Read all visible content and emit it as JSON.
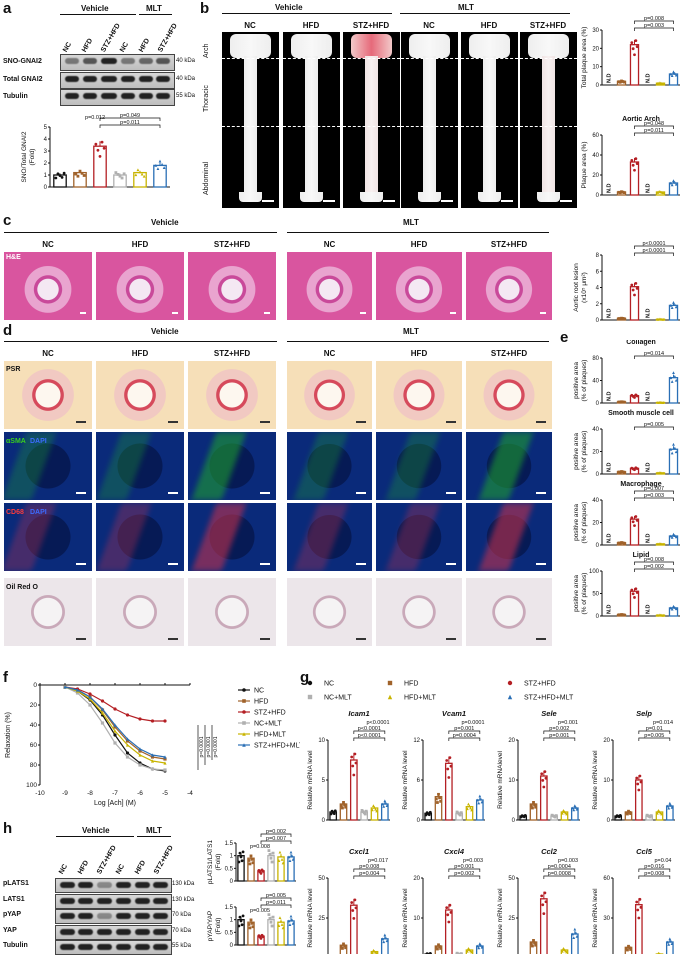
{
  "panels": {
    "a": "a",
    "b": "b",
    "c": "c",
    "d": "d",
    "e": "e",
    "f": "f",
    "g": "g",
    "h": "h"
  },
  "groups": {
    "vehicle": "Vehicle",
    "mlt": "MLT"
  },
  "conds": [
    "NC",
    "HFD",
    "STZ+HFD",
    "NC",
    "HFD",
    "STZ+HFD"
  ],
  "panel_a": {
    "blot_labels": [
      "SNO-GNAI2",
      "Total GNAI2",
      "Tubulin"
    ],
    "kda": [
      "40 kDa",
      "40 kDa",
      "55 kDa"
    ],
    "ylabel": "SNO/Total GNAI2\n(Fold)",
    "pvals": [
      "p=0.011",
      "p=0.049",
      "p=0.012"
    ]
  },
  "panel_b": {
    "regions": [
      "Arch",
      "Thoracic",
      "Abdominal"
    ],
    "chart1": {
      "ylabel": "Total plaque area (%)",
      "pvals": [
        "p=0.003",
        "p=0.008"
      ],
      "nd": "N.D"
    },
    "chart2": {
      "title": "Aortic  Arch",
      "ylabel": "Plaque area (%)",
      "pvals": [
        "p=0.011",
        "p=0.048"
      ],
      "nd": "N.D"
    }
  },
  "panel_c": {
    "stain": "H&E",
    "ylabel": "Aortic root lesion\n(x10⁵ μm²)",
    "pvals": [
      "p<0.0001",
      "p<0.0001"
    ],
    "nd": "N.D"
  },
  "panel_d": {
    "stains": [
      "PSR",
      "αSMA",
      "DAPI",
      "CD68",
      "DAPI",
      "Oil Red O"
    ]
  },
  "panel_e": {
    "titles": [
      "Collagen",
      "Smooth muscle cell",
      "Macrophage",
      "Lipid"
    ],
    "ylabel": "positive area\n(% of plaques)",
    "pvals": [
      [
        "p=0.014"
      ],
      [
        "p=0.005"
      ],
      [
        "p=0.003",
        "p=0.007"
      ],
      [
        "p=0.002",
        "p=0.008"
      ]
    ],
    "nd": "N.D"
  },
  "panel_f": {
    "ylabel": "Relaxation (%)",
    "xlabel": "Log [Ach] (M)",
    "xticks": [
      "-10",
      "-9",
      "-8",
      "-7",
      "-6",
      "-5",
      "-4"
    ],
    "yticks": [
      "0",
      "20",
      "40",
      "60",
      "80",
      "100"
    ],
    "legend": [
      "NC",
      "HFD",
      "STZ+HFD",
      "NC+MLT",
      "HFD+MLT",
      "STZ+HFD+MLT"
    ],
    "pvals": [
      "p=0.0001",
      "p=0.0001",
      "p=0.0001"
    ]
  },
  "panel_g": {
    "legend": [
      "NC",
      "HFD",
      "STZ+HFD",
      "NC+MLT",
      "HFD+MLT",
      "STZ+HFD+MLT"
    ],
    "genes": [
      "Icam1",
      "Vcam1",
      "Sele",
      "Selp",
      "Cxcl1",
      "Cxcl4",
      "Ccl2",
      "Ccl5"
    ],
    "ylabel": "Relative mRNA level",
    "ylabel_sele": "Relative mRNAlevel",
    "pvals": [
      [
        "p<0.0001",
        "p<0.0001",
        "p<0.0001"
      ],
      [
        "p=0.0004",
        "p=0.001",
        "p=0.0001"
      ],
      [
        "p=0.001",
        "p=0.002",
        "p=0.001"
      ],
      [
        "p=0.005",
        "p=0.01",
        "p=0.014"
      ],
      [
        "p=0.004",
        "p=0.008",
        "p=0.017"
      ],
      [
        "p=0.002",
        "p=0.001",
        "p=0.003"
      ],
      [
        "p=0.0008",
        "p=0.0004",
        "p=0.003"
      ],
      [
        "p=0.008",
        "p=0.016",
        "p=0.04"
      ]
    ]
  },
  "panel_h": {
    "blot_labels": [
      "pLATS1",
      "LATS1",
      "pYAP",
      "YAP",
      "Tubulin"
    ],
    "kda": [
      "130 kDa",
      "130 kDa",
      "70 kDa",
      "70 kDa",
      "55 kDa"
    ],
    "ylabel1": "pLATS1/LATS1\n(Fold)",
    "ylabel2": "pYAP/YAP\n(Fold)",
    "pvals1": [
      "p=0.007",
      "p=0.002",
      "p=0.008"
    ],
    "pvals2": [
      "p=0.011",
      "p=0.005",
      "p=0.005"
    ]
  },
  "colors": {
    "nc": "#111111",
    "hfd": "#a0622a",
    "stz": "#b41f24",
    "ncm": "#b0b0b0",
    "hfdm": "#c8b400",
    "stzm": "#2a6fb5"
  },
  "chart_data": [
    {
      "type": "bar",
      "title": "",
      "categories": [
        "NC",
        "HFD",
        "STZ+HFD",
        "NC+MLT",
        "HFD+MLT",
        "STZ+HFD+MLT"
      ],
      "values": [
        1.0,
        1.2,
        3.4,
        1.0,
        1.2,
        1.8
      ],
      "ylabel": "SNO/Total GNAI2 (Fold)",
      "ylim": [
        0,
        5
      ]
    },
    {
      "type": "bar",
      "title": "",
      "categories": [
        "NC",
        "HFD",
        "STZ+HFD",
        "NC+MLT",
        "HFD+MLT",
        "STZ+HFD+MLT"
      ],
      "values": [
        0,
        2,
        22,
        0,
        1,
        6
      ],
      "ylabel": "Total plaque area (%)",
      "ylim": [
        0,
        30
      ]
    },
    {
      "type": "bar",
      "title": "Aortic  Arch",
      "categories": [
        "NC",
        "HFD",
        "STZ+HFD",
        "NC+MLT",
        "HFD+MLT",
        "STZ+HFD+MLT"
      ],
      "values": [
        0,
        3,
        33,
        0,
        3,
        12
      ],
      "ylabel": "Plaque area (%)",
      "ylim": [
        0,
        60
      ]
    },
    {
      "type": "bar",
      "title": "",
      "categories": [
        "NC",
        "HFD",
        "STZ+HFD",
        "NC+MLT",
        "HFD+MLT",
        "STZ+HFD+MLT"
      ],
      "values": [
        0,
        0.2,
        4.1,
        0,
        0.1,
        1.8
      ],
      "ylabel": "Aortic root lesion (x10^5 μm^2)",
      "ylim": [
        0,
        8
      ]
    },
    {
      "type": "bar",
      "title": "Collagen",
      "categories": [
        "NC",
        "HFD",
        "STZ+HFD",
        "NC+MLT",
        "HFD+MLT",
        "STZ+HFD+MLT"
      ],
      "values": [
        0,
        2,
        13,
        0,
        1,
        45
      ],
      "ylim": [
        0,
        80
      ]
    },
    {
      "type": "bar",
      "title": "Smooth muscle cell",
      "categories": [
        "NC",
        "HFD",
        "STZ+HFD",
        "NC+MLT",
        "HFD+MLT",
        "STZ+HFD+MLT"
      ],
      "values": [
        0,
        2,
        5,
        0,
        1,
        22
      ],
      "ylim": [
        0,
        40
      ]
    },
    {
      "type": "bar",
      "title": "Macrophage",
      "categories": [
        "NC",
        "HFD",
        "STZ+HFD",
        "NC+MLT",
        "HFD+MLT",
        "STZ+HFD+MLT"
      ],
      "values": [
        0,
        2,
        23,
        0,
        1,
        8
      ],
      "ylim": [
        0,
        40
      ]
    },
    {
      "type": "bar",
      "title": "Lipid",
      "categories": [
        "NC",
        "HFD",
        "STZ+HFD",
        "NC+MLT",
        "HFD+MLT",
        "STZ+HFD+MLT"
      ],
      "values": [
        0,
        3,
        55,
        0,
        2,
        18
      ],
      "ylim": [
        0,
        100
      ]
    },
    {
      "type": "line",
      "title": "",
      "x": [
        -9,
        -8.5,
        -8,
        -7.5,
        -7,
        -6.5,
        -6,
        -5.5,
        -5
      ],
      "series": [
        {
          "name": "NC",
          "values": [
            2,
            6,
            15,
            30,
            50,
            68,
            78,
            84,
            86
          ]
        },
        {
          "name": "HFD",
          "values": [
            2,
            5,
            12,
            25,
            42,
            56,
            66,
            72,
            74
          ]
        },
        {
          "name": "STZ+HFD",
          "values": [
            2,
            4,
            9,
            16,
            24,
            30,
            34,
            36,
            36
          ]
        },
        {
          "name": "NC+MLT",
          "values": [
            2,
            8,
            20,
            38,
            58,
            72,
            80,
            84,
            85
          ]
        },
        {
          "name": "HFD+MLT",
          "values": [
            2,
            6,
            14,
            28,
            46,
            60,
            70,
            76,
            78
          ]
        },
        {
          "name": "STZ+HFD+MLT",
          "values": [
            2,
            5,
            12,
            24,
            40,
            54,
            64,
            70,
            72
          ]
        }
      ],
      "xlabel": "Log [Ach] (M)",
      "ylabel": "Relaxation (%)",
      "xlim": [
        -10,
        -4
      ],
      "ylim": [
        0,
        100
      ]
    },
    {
      "type": "bar",
      "title": "Icam1",
      "categories": [
        "NC",
        "HFD",
        "STZ+HFD",
        "NC+MLT",
        "HFD+MLT",
        "STZ+HFD+MLT"
      ],
      "values": [
        1,
        2,
        7.5,
        1,
        1.5,
        2
      ],
      "ylim": [
        0,
        10
      ]
    },
    {
      "type": "bar",
      "title": "Vcam1",
      "categories": [
        "NC",
        "HFD",
        "STZ+HFD",
        "NC+MLT",
        "HFD+MLT",
        "STZ+HFD+MLT"
      ],
      "values": [
        1,
        3.5,
        8.5,
        1,
        2,
        3
      ],
      "ylim": [
        0,
        12
      ]
    },
    {
      "type": "bar",
      "title": "Sele",
      "categories": [
        "NC",
        "HFD",
        "STZ+HFD",
        "NC+MLT",
        "HFD+MLT",
        "STZ+HFD+MLT"
      ],
      "values": [
        1,
        4,
        11,
        1,
        2,
        3
      ],
      "ylim": [
        0,
        20
      ]
    },
    {
      "type": "bar",
      "title": "Selp",
      "categories": [
        "NC",
        "HFD",
        "STZ+HFD",
        "NC+MLT",
        "HFD+MLT",
        "STZ+HFD+MLT"
      ],
      "values": [
        1,
        2,
        10,
        1,
        2,
        3.5
      ],
      "ylim": [
        0,
        20
      ]
    },
    {
      "type": "bar",
      "title": "Cxcl1",
      "categories": [
        "NC",
        "HFD",
        "STZ+HFD",
        "NC+MLT",
        "HFD+MLT",
        "STZ+HFD+MLT"
      ],
      "values": [
        1,
        8,
        33,
        1,
        4,
        12
      ],
      "ylim": [
        0,
        50
      ]
    },
    {
      "type": "bar",
      "title": "Cxcl4",
      "categories": [
        "NC",
        "HFD",
        "STZ+HFD",
        "NC+MLT",
        "HFD+MLT",
        "STZ+HFD+MLT"
      ],
      "values": [
        1,
        3,
        12,
        1,
        2,
        3
      ],
      "ylim": [
        0,
        20
      ]
    },
    {
      "type": "bar",
      "title": "Ccl2",
      "categories": [
        "NC",
        "HFD",
        "STZ+HFD",
        "NC+MLT",
        "HFD+MLT",
        "STZ+HFD+MLT"
      ],
      "values": [
        1,
        10,
        37,
        1,
        5,
        15
      ],
      "ylim": [
        0,
        50
      ]
    },
    {
      "type": "bar",
      "title": "Ccl5",
      "categories": [
        "NC",
        "HFD",
        "STZ+HFD",
        "NC+MLT",
        "HFD+MLT",
        "STZ+HFD+MLT"
      ],
      "values": [
        1,
        8,
        40,
        1,
        3,
        12
      ],
      "ylim": [
        0,
        60
      ]
    },
    {
      "type": "bar",
      "title": "",
      "categories": [
        "NC",
        "HFD",
        "STZ+HFD",
        "NC+MLT",
        "HFD+MLT",
        "STZ+HFD+MLT"
      ],
      "values": [
        1.0,
        0.9,
        0.4,
        1.0,
        0.95,
        0.95
      ],
      "ylabel": "pLATS1/LATS1 (Fold)",
      "ylim": [
        0,
        1.5
      ]
    },
    {
      "type": "bar",
      "title": "",
      "categories": [
        "NC",
        "HFD",
        "STZ+HFD",
        "NC+MLT",
        "HFD+MLT",
        "STZ+HFD+MLT"
      ],
      "values": [
        1.0,
        0.9,
        0.35,
        1.0,
        0.9,
        0.95
      ],
      "ylabel": "pYAP/YAP (Fold)",
      "ylim": [
        0,
        1.5
      ]
    }
  ]
}
